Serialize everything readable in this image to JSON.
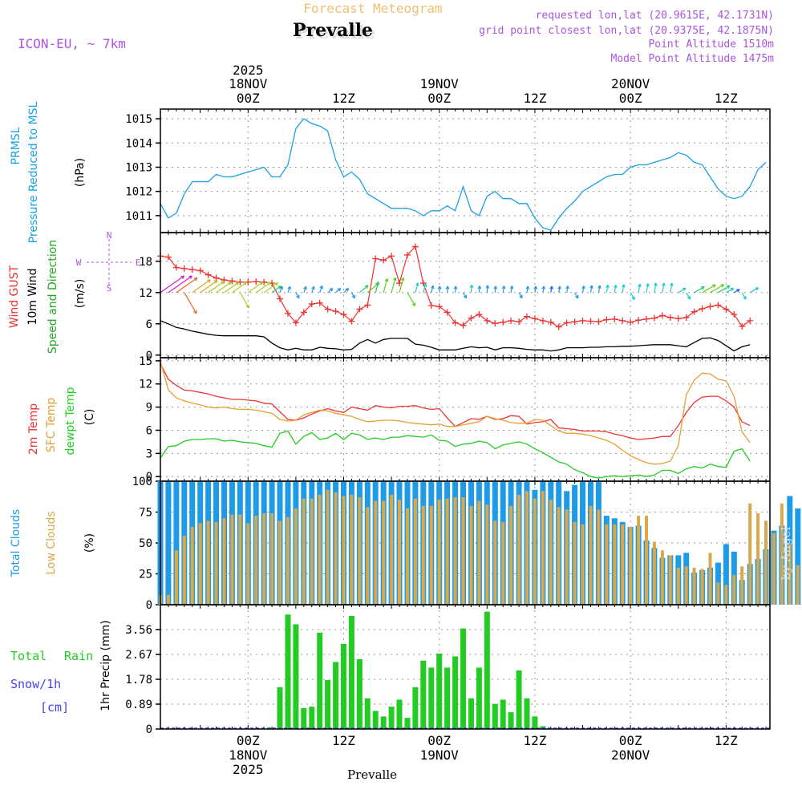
{
  "colors": {
    "pressure": "#1aa0e6",
    "gust": "#ee3333",
    "wind": "#000000",
    "temp2m": "#ee3333",
    "sfc": "#e6a030",
    "dewpt": "#22cc22",
    "total_clouds": "#1e9be6",
    "low_clouds": "#d8a84a",
    "rain": "#22cc22",
    "snow": "#4444ee",
    "purple": "#aa55dd",
    "header_orange": "#f0c070"
  },
  "header": {
    "title": "Forecast Meteogram",
    "location": "Prevalle",
    "model": "ICON-EU, ~ 7km",
    "requested": "requested lon,lat (20.9615E, 42.1731N)",
    "grid_point": "grid point closest lon,lat (20.9375E, 42.1875N)",
    "point_altitude": "Point Altitude 1510m",
    "model_altitude": "Model Point Altitude 1475m",
    "watermark": "by Angel",
    "footer_location": "Prevalle"
  },
  "time_axis": {
    "year": "2025",
    "labels": [
      {
        "hour": 18,
        "time": "00Z",
        "date": "18NOV",
        "year": "2025"
      },
      {
        "hour": 30,
        "time": "12Z",
        "date": "",
        "year": ""
      },
      {
        "hour": 42,
        "time": "00Z",
        "date": "19NOV",
        "year": ""
      },
      {
        "hour": 54,
        "time": "12Z",
        "date": "",
        "year": ""
      },
      {
        "hour": 66,
        "time": "00Z",
        "date": "20NOV",
        "year": ""
      },
      {
        "hour": 78,
        "time": "12Z",
        "date": "",
        "year": ""
      }
    ],
    "start_hour": 7,
    "end_hour": 83.5
  },
  "panel_labels": {
    "pressure": [
      "PRMSL",
      "Pressure Reduced to MSL",
      "(hPa)"
    ],
    "wind": [
      "Wind GUST",
      "10m Wind",
      "Speed and Direction",
      "(m/s)"
    ],
    "compass": [
      "N",
      "E",
      "S",
      "W"
    ],
    "temp": [
      "2m Temp",
      "SFC Temp",
      "dewpt Temp",
      "(C)"
    ],
    "clouds": [
      "Total Clouds",
      "Low Clouds",
      "(%)"
    ],
    "precip": [
      "Total",
      "Rain",
      "Snow/1h",
      "[cm]",
      "1hr Precip (mm)"
    ]
  },
  "chart_data": [
    {
      "type": "line",
      "name": "pressure",
      "title": "PRMSL Pressure Reduced to MSL",
      "ylabel": "hPa",
      "ylim": [
        1010.3,
        1015.4
      ],
      "yticks": [
        1011,
        1012,
        1013,
        1014,
        1015
      ],
      "x_start": 7,
      "x_step": 1,
      "values": [
        1011.5,
        1010.9,
        1011.1,
        1011.9,
        1012.4,
        1012.4,
        1012.4,
        1012.7,
        1012.6,
        1012.6,
        1012.7,
        1012.8,
        1012.9,
        1013.0,
        1012.6,
        1012.6,
        1013.1,
        1014.6,
        1015.0,
        1014.8,
        1014.7,
        1014.5,
        1013.3,
        1012.6,
        1012.8,
        1012.5,
        1011.9,
        1011.7,
        1011.5,
        1011.3,
        1011.3,
        1011.3,
        1011.2,
        1011.0,
        1011.2,
        1011.2,
        1011.4,
        1011.2,
        1012.2,
        1011.2,
        1011.0,
        1011.8,
        1012.0,
        1011.7,
        1011.7,
        1011.5,
        1011.5,
        1010.9,
        1010.5,
        1010.4,
        1010.9,
        1011.3,
        1011.6,
        1012.0,
        1012.2,
        1012.4,
        1012.6,
        1012.7,
        1012.7,
        1013.0,
        1013.1,
        1013.1,
        1013.2,
        1013.3,
        1013.4,
        1013.6,
        1013.5,
        1013.2,
        1013.1,
        1012.6,
        1012.1,
        1011.8,
        1011.7,
        1011.8,
        1012.2,
        1012.9,
        1013.2
      ]
    },
    {
      "type": "line",
      "name": "wind",
      "title": "Wind GUST / 10m Wind Speed and Direction",
      "ylabel": "m/s",
      "ylim": [
        -0.5,
        23.5
      ],
      "yticks": [
        0,
        6,
        12,
        18
      ],
      "x_start": 7,
      "x_step": 1,
      "series": [
        {
          "name": "Wind GUST",
          "values": [
            19.0,
            18.8,
            16.8,
            16.6,
            16.4,
            16.2,
            15.4,
            14.8,
            14.4,
            14.2,
            14.0,
            14.0,
            14.1,
            14.0,
            13.8,
            10.8,
            8.0,
            6.2,
            8.2,
            9.8,
            10.0,
            8.8,
            8.4,
            7.8,
            6.5,
            8.8,
            9.6,
            18.5,
            18.2,
            19.0,
            13.8,
            19.2,
            20.8,
            13.8,
            9.5,
            9.3,
            8.2,
            6.2,
            5.7,
            7.1,
            7.8,
            6.6,
            6.1,
            6.3,
            6.6,
            6.4,
            7.4,
            7.0,
            6.6,
            6.3,
            5.4,
            6.2,
            6.4,
            6.6,
            6.5,
            6.4,
            6.8,
            6.9,
            6.6,
            6.3,
            6.7,
            6.9,
            7.1,
            7.6,
            7.2,
            7.0,
            7.2,
            8.3,
            8.9,
            9.3,
            9.6,
            8.8,
            7.8,
            5.5,
            6.6
          ]
        },
        {
          "name": "10m Wind",
          "values": [
            6.6,
            6.0,
            5.3,
            5.0,
            4.6,
            4.3,
            4.0,
            3.8,
            3.7,
            3.7,
            3.7,
            3.7,
            3.7,
            3.5,
            2.3,
            1.4,
            1.0,
            1.3,
            1.0,
            1.0,
            1.5,
            1.3,
            1.2,
            1.0,
            1.1,
            2.3,
            3.0,
            2.3,
            3.0,
            3.2,
            3.2,
            3.2,
            2.1,
            1.9,
            1.5,
            1.0,
            1.0,
            1.0,
            1.3,
            1.6,
            1.4,
            1.5,
            1.0,
            1.4,
            1.4,
            1.3,
            1.1,
            1.0,
            1.0,
            0.8,
            1.0,
            1.4,
            1.4,
            1.4,
            1.5,
            1.5,
            1.6,
            1.6,
            1.7,
            1.7,
            1.8,
            1.9,
            2.0,
            2.0,
            2.0,
            1.8,
            1.6,
            2.4,
            3.2,
            3.3,
            2.8,
            1.8,
            0.8,
            1.6,
            2.0
          ]
        }
      ],
      "barb_row_values": [
        12,
        12,
        12
      ]
    },
    {
      "type": "line",
      "name": "temperature",
      "title": "2m Temp / SFC Temp / dewpt Temp",
      "ylabel": "C",
      "ylim": [
        -0.6,
        15.4
      ],
      "yticks": [
        0,
        3,
        6,
        9,
        12,
        15
      ],
      "x_start": 7,
      "x_step": 1,
      "series": [
        {
          "name": "2m Temp",
          "values": [
            14.6,
            12.6,
            11.8,
            11.2,
            11.1,
            10.9,
            10.7,
            10.4,
            10.2,
            10.0,
            10.0,
            9.9,
            9.8,
            9.5,
            9.4,
            8.4,
            7.4,
            7.3,
            7.6,
            8.1,
            8.5,
            8.8,
            8.5,
            8.3,
            9.0,
            8.8,
            8.6,
            9.2,
            9.0,
            8.9,
            9.1,
            9.1,
            9.2,
            8.9,
            8.7,
            8.8,
            7.6,
            6.5,
            7.0,
            7.5,
            7.4,
            7.8,
            7.4,
            7.5,
            7.9,
            7.8,
            6.8,
            7.0,
            7.1,
            7.4,
            6.3,
            6.2,
            6.1,
            5.9,
            5.9,
            5.9,
            5.8,
            5.5,
            5.3,
            5.0,
            4.8,
            4.9,
            5.0,
            5.2,
            5.2,
            6.6,
            8.3,
            9.6,
            10.3,
            10.4,
            10.4,
            9.8,
            9.0,
            7.1,
            6.6
          ]
        },
        {
          "name": "SFC Temp",
          "values": [
            14.9,
            11.2,
            10.2,
            9.8,
            9.5,
            9.3,
            9.0,
            8.9,
            9.0,
            8.8,
            8.7,
            8.7,
            8.6,
            8.4,
            8.2,
            7.4,
            7.2,
            7.3,
            8.0,
            8.3,
            8.6,
            8.5,
            8.2,
            8.0,
            7.8,
            7.4,
            7.1,
            7.2,
            7.3,
            7.3,
            7.2,
            7.0,
            6.9,
            6.8,
            6.7,
            6.8,
            6.5,
            6.5,
            6.7,
            6.9,
            7.1,
            7.8,
            7.5,
            7.3,
            7.0,
            6.9,
            6.9,
            7.4,
            7.3,
            6.6,
            5.9,
            5.6,
            5.6,
            5.5,
            5.3,
            5.0,
            4.7,
            4.2,
            3.4,
            2.7,
            2.2,
            1.8,
            1.6,
            1.7,
            2.0,
            4.0,
            10.6,
            12.5,
            13.4,
            13.3,
            12.6,
            12.4,
            10.4,
            5.8,
            4.4
          ]
        },
        {
          "name": "dewpt Temp",
          "values": [
            2.4,
            3.9,
            4.0,
            4.6,
            4.8,
            4.8,
            4.9,
            4.9,
            4.6,
            4.7,
            4.5,
            4.4,
            4.3,
            4.0,
            3.8,
            5.6,
            5.9,
            4.2,
            5.2,
            5.7,
            4.8,
            5.0,
            5.6,
            4.8,
            5.6,
            5.4,
            4.8,
            5.0,
            4.8,
            5.1,
            5.1,
            5.3,
            5.2,
            5.1,
            5.4,
            4.7,
            4.6,
            3.9,
            4.2,
            4.3,
            4.6,
            4.4,
            3.6,
            4.1,
            4.3,
            4.5,
            4.2,
            3.6,
            3.1,
            2.5,
            1.9,
            1.6,
            0.9,
            0.5,
            0.0,
            -0.2,
            0.0,
            0.1,
            0.0,
            0.1,
            0.2,
            0.0,
            0.2,
            0.8,
            0.8,
            0.4,
            1.0,
            1.3,
            1.1,
            1.6,
            1.3,
            1.2,
            3.3,
            3.6,
            2.0
          ]
        }
      ]
    },
    {
      "type": "bar",
      "name": "clouds",
      "title": "Total Clouds / Low Clouds",
      "ylabel": "%",
      "ylim": [
        0,
        100
      ],
      "yticks": [
        0,
        25,
        50,
        75,
        100
      ],
      "x_start": 7,
      "x_step": 1,
      "series": [
        {
          "name": "Total Clouds",
          "values": [
            100,
            100,
            100,
            100,
            100,
            100,
            100,
            100,
            100,
            100,
            100,
            100,
            100,
            100,
            100,
            100,
            100,
            100,
            100,
            100,
            100,
            100,
            100,
            100,
            100,
            100,
            100,
            100,
            100,
            100,
            100,
            100,
            100,
            100,
            100,
            100,
            100,
            100,
            100,
            100,
            100,
            100,
            100,
            100,
            100,
            100,
            100,
            93,
            100,
            100,
            100,
            92,
            97,
            100,
            100,
            100,
            72,
            70,
            67,
            63,
            64,
            52,
            46,
            38,
            40,
            40,
            42,
            26,
            28,
            30,
            34,
            49,
            43,
            20,
            33,
            37,
            45,
            60,
            64,
            88,
            78,
            80,
            75,
            59,
            79,
            100
          ]
        },
        {
          "name": "Low Clouds",
          "values": [
            8,
            8,
            44,
            56,
            63,
            66,
            68,
            67,
            70,
            73,
            73,
            66,
            72,
            74,
            74,
            68,
            71,
            78,
            86,
            86,
            89,
            93,
            91,
            88,
            89,
            87,
            79,
            84,
            84,
            89,
            85,
            78,
            86,
            80,
            80,
            85,
            86,
            87,
            87,
            80,
            84,
            81,
            68,
            67,
            80,
            89,
            92,
            86,
            92,
            85,
            79,
            77,
            67,
            65,
            80,
            77,
            65,
            65,
            65,
            63,
            72,
            72,
            51,
            44,
            40,
            30,
            31,
            30,
            29,
            42,
            18,
            16,
            24,
            31,
            82,
            74,
            68,
            58,
            82,
            49,
            32,
            29
          ]
        }
      ]
    },
    {
      "type": "bar",
      "name": "precip",
      "title": "1hr Precip (mm)",
      "ylabel": "1hr Precip (mm)",
      "ylim": [
        0,
        4.45
      ],
      "yticks": [
        0,
        0.89,
        1.78,
        2.67,
        3.56
      ],
      "x_start": 7,
      "x_step": 1,
      "series": [
        {
          "name": "Total Rain",
          "values": [
            0,
            0,
            0,
            0,
            0,
            0,
            0,
            0,
            0,
            0,
            0,
            0,
            0,
            0,
            0.05,
            1.5,
            4.1,
            3.75,
            0.75,
            0.8,
            3.45,
            1.75,
            2.4,
            3.05,
            4.05,
            2.5,
            1.1,
            0.65,
            0.45,
            0.8,
            1.05,
            0.4,
            1.5,
            2.45,
            2.2,
            2.7,
            2.2,
            2.6,
            3.6,
            1.1,
            2.2,
            4.2,
            0.9,
            1.05,
            0.6,
            2.1,
            1.1,
            0.45,
            0.1,
            0,
            0,
            0,
            0,
            0,
            0,
            0,
            0,
            0,
            0,
            0,
            0,
            0,
            0,
            0,
            0,
            0,
            0,
            0,
            0,
            0,
            0,
            0,
            0,
            0,
            0,
            0,
            0
          ]
        },
        {
          "name": "Snow/1h",
          "values": []
        }
      ]
    }
  ]
}
